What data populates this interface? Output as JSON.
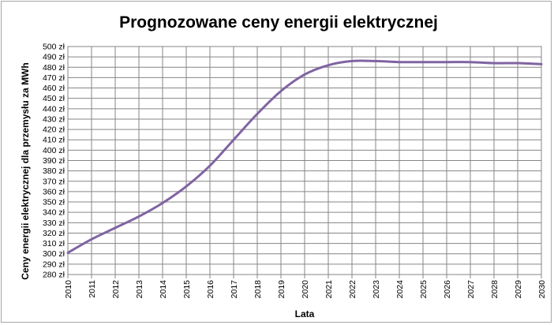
{
  "chart_data": {
    "type": "line",
    "title": "Prognozowane ceny energii elektrycznej",
    "xlabel": "Lata",
    "ylabel": "Ceny energii elektrycznej dla przemysłu za MWh",
    "y_unit_suffix": " zł",
    "ylim": [
      280,
      500
    ],
    "y_step": 10,
    "grid": true,
    "legend": "none",
    "categories": [
      "2010",
      "2011",
      "2012",
      "2013",
      "2014",
      "2015",
      "2016",
      "2017",
      "2018",
      "2019",
      "2020",
      "2021",
      "2022",
      "2023",
      "2024",
      "2025",
      "2026",
      "2027",
      "2028",
      "2029",
      "2030"
    ],
    "series": [
      {
        "color": "#8064a2",
        "values": [
          301,
          314,
          325,
          336,
          349,
          365,
          385,
          410,
          435,
          457,
          473,
          482,
          486,
          486,
          485,
          485,
          485,
          485,
          484,
          484,
          483
        ]
      }
    ]
  }
}
